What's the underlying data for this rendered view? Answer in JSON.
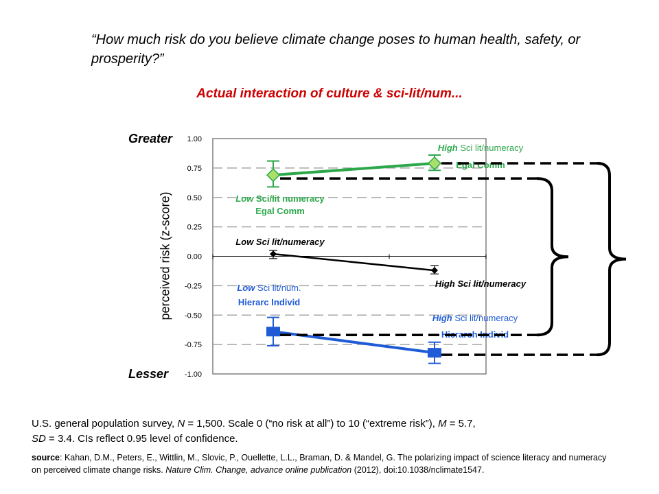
{
  "question": "“How much risk do you believe climate change poses to human health, safety, or prosperity?”",
  "subtitle": "Actual interaction of culture & sci-lit/num...",
  "greater_label": "Greater",
  "lesser_label": "Lesser",
  "chart_data": {
    "type": "line",
    "ylabel": "perceived risk (z-score)",
    "ylim": [
      -1.0,
      1.0
    ],
    "ytick_labels": [
      "1.00",
      "0.75",
      "0.50",
      "0.25",
      "0.00",
      "-0.25",
      "-0.50",
      "-0.75",
      "-1.00"
    ],
    "ytick_values": [
      1.0,
      0.75,
      0.5,
      0.25,
      0.0,
      -0.25,
      -0.5,
      -0.75,
      -1.0
    ],
    "grid": "dashed horizontal",
    "series": [
      {
        "group": "egal",
        "color": "#2ca84a",
        "marker": "diamond",
        "values": [
          0.69,
          0.79
        ],
        "ci_low": [
          0.59,
          0.73
        ],
        "ci_high": [
          0.81,
          0.86
        ],
        "labels": [
          {
            "italic": "Low",
            "line1": " Sci/lit numeracy",
            "line2": "Egal Comm"
          },
          {
            "italic": "High",
            "line1": " Sci lit/numeracy",
            "line2": "Egal Comm"
          }
        ]
      },
      {
        "group": "all",
        "color": "#000000",
        "marker": "diamond",
        "values": [
          0.02,
          -0.12
        ],
        "ci_low": [
          -0.02,
          -0.15
        ],
        "ci_high": [
          0.05,
          -0.08
        ],
        "labels": [
          {
            "italic": "",
            "line1": "Low Sci lit/numeracy",
            "line2": ""
          },
          {
            "italic": "",
            "line1": "High Sci lit/numeracy",
            "line2": ""
          }
        ]
      },
      {
        "group": "hierarch",
        "color": "#1f5bd6",
        "marker": "square",
        "values": [
          -0.64,
          -0.82
        ],
        "ci_low": [
          -0.76,
          -0.91
        ],
        "ci_high": [
          -0.52,
          -0.73
        ],
        "labels": [
          {
            "italic": "Low",
            "line1": " Sci lit/num.",
            "line2": "Hierarc Individ"
          },
          {
            "italic": "High",
            "line1": " Sci lit/numeracy",
            "line2": "Hierarch Individ"
          }
        ]
      }
    ]
  },
  "survey_text": {
    "part1": "U.S. general population survey, ",
    "n_var": "N",
    "part2": " = 1,500.  Scale 0 (“no risk at all”) to 10 (“extreme risk”), ",
    "m_var": "M",
    "part3": " = 5.7,",
    "sd_var": "SD",
    "part4": " = 3.4. CIs reflect 0.95 level of confidence."
  },
  "source_text": {
    "label": "source",
    "part1": ": Kahan, D.M., Peters, E., Wittlin, M., Slovic, P., Ouellette, L.L., Braman, D. & Mandel, G. The polarizing impact of science literacy and numeracy on perceived climate change risks. ",
    "journal": "Nature Clim. Change,  advance online publication",
    "part2": " (2012), doi:10.1038/nclimate1547."
  }
}
